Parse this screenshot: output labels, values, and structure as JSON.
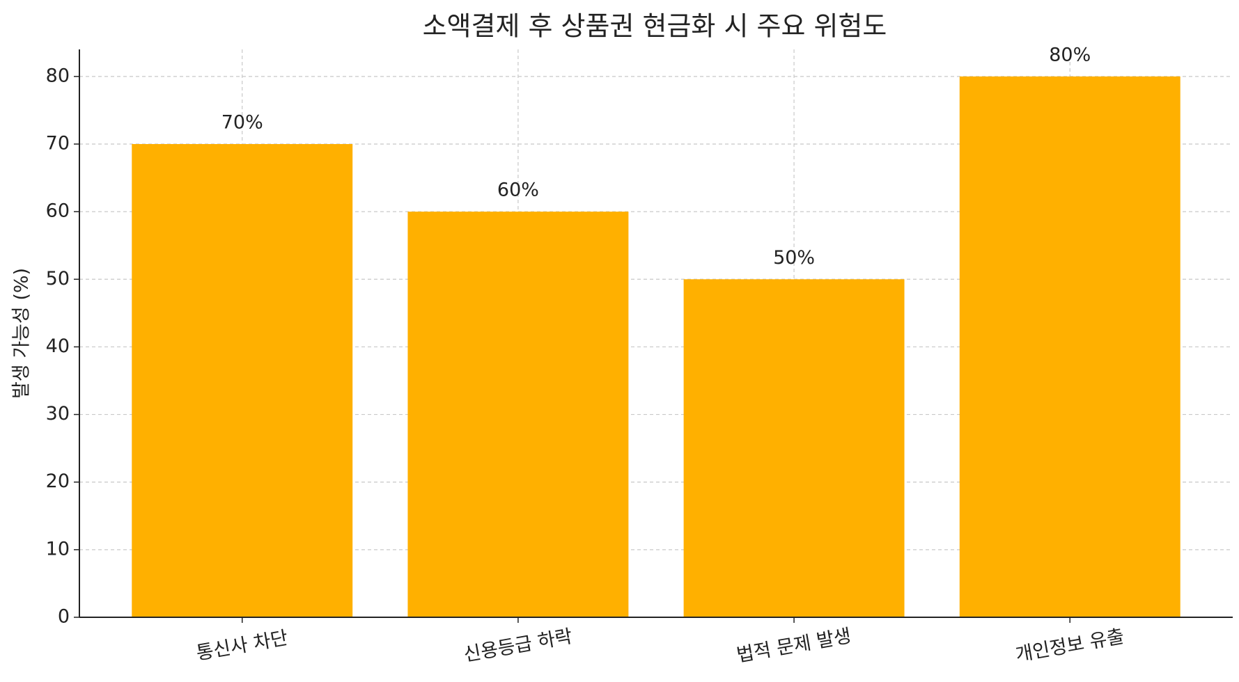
{
  "chart_data": {
    "type": "bar",
    "title": "소액결제 후 상품권 현금화 시 주요 위험도",
    "ylabel": "발생 가능성 (%)",
    "categories": [
      "통신사 차단",
      "신용등급 하락",
      "법적 문제 발생",
      "개인정보 유출"
    ],
    "values": [
      70,
      60,
      50,
      80
    ],
    "value_labels": [
      "70%",
      "60%",
      "50%",
      "80%"
    ],
    "color": "#ffb000",
    "ylim": [
      0,
      84
    ],
    "yticks": [
      0,
      10,
      20,
      30,
      40,
      50,
      60,
      70,
      80
    ],
    "grid": true
  }
}
